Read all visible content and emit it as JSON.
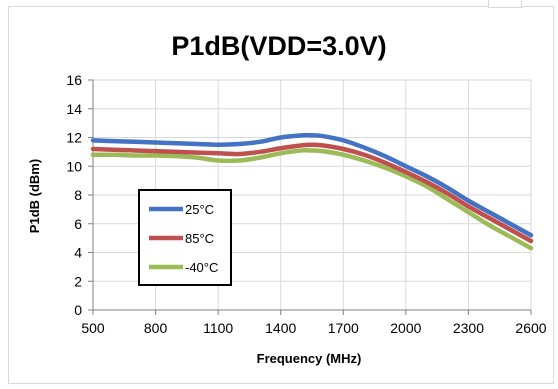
{
  "chart_data": {
    "type": "line",
    "title": "P1dB(VDD=3.0V)",
    "xlabel": "Frequency (MHz)",
    "ylabel": "P1dB (dBm)",
    "xlim": [
      500,
      2600
    ],
    "ylim": [
      0,
      16
    ],
    "xticks": [
      500,
      800,
      1100,
      1400,
      1700,
      2000,
      2300,
      2600
    ],
    "yticks": [
      0,
      2,
      4,
      6,
      8,
      10,
      12,
      14,
      16
    ],
    "grid": true,
    "legend_position": "bottom-left",
    "x": [
      500,
      600,
      700,
      800,
      900,
      1000,
      1100,
      1200,
      1300,
      1400,
      1500,
      1550,
      1600,
      1700,
      1800,
      1900,
      2000,
      2100,
      2200,
      2300,
      2400,
      2500,
      2600
    ],
    "series": [
      {
        "name": "25°C",
        "color": "#4472C4",
        "values": [
          11.8,
          11.75,
          11.7,
          11.65,
          11.6,
          11.55,
          11.5,
          11.55,
          11.7,
          12.0,
          12.15,
          12.15,
          12.1,
          11.8,
          11.3,
          10.7,
          10.0,
          9.3,
          8.5,
          7.6,
          6.8,
          6.0,
          5.2
        ]
      },
      {
        "name": "85°C",
        "color": "#C0504D",
        "values": [
          11.2,
          11.15,
          11.1,
          11.05,
          11.0,
          10.95,
          10.9,
          10.85,
          11.0,
          11.25,
          11.45,
          11.5,
          11.45,
          11.2,
          10.8,
          10.25,
          9.6,
          8.9,
          8.1,
          7.2,
          6.4,
          5.6,
          4.8
        ]
      },
      {
        "name": "-40°C",
        "color": "#9BBB59",
        "values": [
          10.8,
          10.8,
          10.75,
          10.75,
          10.7,
          10.6,
          10.4,
          10.4,
          10.6,
          10.9,
          11.1,
          11.1,
          11.05,
          10.8,
          10.4,
          9.9,
          9.3,
          8.6,
          7.7,
          6.8,
          5.9,
          5.1,
          4.3
        ]
      }
    ]
  }
}
